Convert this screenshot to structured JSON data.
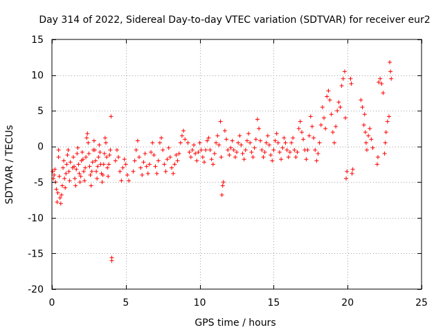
{
  "chart_data": {
    "type": "scatter",
    "title": "Day 314 of 2022, Sidereal Day-to-day VTEC variation (SDTVAR) for receiver eur2",
    "xlabel": "GPS time / hours",
    "ylabel": "SDTVAR / TECUs",
    "xlim": [
      0,
      25
    ],
    "ylim": [
      -20,
      15
    ],
    "grid": true,
    "marker": "+",
    "colors": {
      "series": "#ff0000",
      "grid": "#a0a0a0",
      "axis": "#000000"
    },
    "xticks": [
      0,
      5,
      10,
      15,
      20,
      25
    ],
    "xtick_labels": [
      "0",
      "5",
      "10",
      "15",
      "20",
      "25"
    ],
    "yticks": [
      -20,
      -15,
      -10,
      -5,
      0,
      5,
      10,
      15
    ],
    "ytick_labels": [
      "-20",
      "-15",
      "-10",
      "-5",
      "0",
      "5",
      "10",
      "15"
    ],
    "series": [
      {
        "name": "eur2",
        "points": [
          [
            0.05,
            -3.5
          ],
          [
            0.1,
            -4.5
          ],
          [
            0.15,
            -4.0
          ],
          [
            0.2,
            -3.2
          ],
          [
            0.25,
            -5.0
          ],
          [
            0.3,
            -6.0
          ],
          [
            0.35,
            -7.8
          ],
          [
            0.4,
            -6.5
          ],
          [
            0.45,
            -0.5
          ],
          [
            0.45,
            -1.5
          ],
          [
            0.5,
            -4.2
          ],
          [
            0.55,
            -7.2
          ],
          [
            0.6,
            -8.0
          ],
          [
            0.65,
            -6.8
          ],
          [
            0.7,
            -5.5
          ],
          [
            0.75,
            -3.0
          ],
          [
            0.8,
            -2.0
          ],
          [
            0.85,
            -4.5
          ],
          [
            0.9,
            -5.8
          ],
          [
            0.95,
            -3.8
          ],
          [
            1.0,
            -2.5
          ],
          [
            1.05,
            -1.2
          ],
          [
            1.1,
            -0.5
          ],
          [
            1.15,
            -3.5
          ],
          [
            1.2,
            -4.8
          ],
          [
            1.25,
            -2.2
          ],
          [
            1.4,
            -3.0
          ],
          [
            1.45,
            -1.5
          ],
          [
            1.5,
            -2.8
          ],
          [
            1.55,
            -4.5
          ],
          [
            1.6,
            -5.5
          ],
          [
            1.65,
            -3.2
          ],
          [
            1.7,
            -1.0
          ],
          [
            1.75,
            -0.2
          ],
          [
            1.8,
            -2.5
          ],
          [
            1.85,
            -3.8
          ],
          [
            1.9,
            -5.0
          ],
          [
            1.95,
            -4.2
          ],
          [
            2.0,
            -2.0
          ],
          [
            2.05,
            -0.8
          ],
          [
            2.1,
            -1.8
          ],
          [
            2.15,
            -3.5
          ],
          [
            2.2,
            -4.8
          ],
          [
            2.25,
            -3.0
          ],
          [
            2.3,
            -1.5
          ],
          [
            2.35,
            1.2
          ],
          [
            2.4,
            1.8
          ],
          [
            2.45,
            0.5
          ],
          [
            2.5,
            -1.0
          ],
          [
            2.55,
            -2.8
          ],
          [
            2.6,
            -4.0
          ],
          [
            2.65,
            -5.5
          ],
          [
            2.7,
            -3.5
          ],
          [
            2.75,
            -2.2
          ],
          [
            2.8,
            -0.5
          ],
          [
            2.85,
            0.8
          ],
          [
            2.9,
            -0.5
          ],
          [
            2.95,
            -2.0
          ],
          [
            3.0,
            -3.5
          ],
          [
            3.05,
            -4.5
          ],
          [
            3.1,
            -2.8
          ],
          [
            3.15,
            -1.5
          ],
          [
            3.2,
            0.2
          ],
          [
            3.25,
            -0.8
          ],
          [
            3.3,
            -2.5
          ],
          [
            3.35,
            -3.8
          ],
          [
            3.4,
            -5.0
          ],
          [
            3.45,
            -4.0
          ],
          [
            3.5,
            -2.5
          ],
          [
            3.55,
            -1.0
          ],
          [
            3.6,
            1.2
          ],
          [
            3.65,
            0.5
          ],
          [
            3.7,
            -1.5
          ],
          [
            3.75,
            -3.0
          ],
          [
            3.8,
            -4.2
          ],
          [
            3.85,
            -2.5
          ],
          [
            3.9,
            -1.2
          ],
          [
            3.95,
            -0.5
          ],
          [
            4.0,
            4.2
          ],
          [
            4.05,
            -16.0
          ],
          [
            4.05,
            -15.6
          ],
          [
            4.3,
            -2.0
          ],
          [
            4.4,
            -0.5
          ],
          [
            4.5,
            -1.5
          ],
          [
            4.6,
            -3.5
          ],
          [
            4.7,
            -4.8
          ],
          [
            4.8,
            -3.0
          ],
          [
            4.9,
            -1.8
          ],
          [
            5.0,
            -2.5
          ],
          [
            5.1,
            -4.0
          ],
          [
            5.2,
            -4.8
          ],
          [
            5.5,
            -3.5
          ],
          [
            5.6,
            -2.0
          ],
          [
            5.7,
            -0.5
          ],
          [
            5.8,
            0.8
          ],
          [
            5.9,
            -1.5
          ],
          [
            6.0,
            -3.0
          ],
          [
            6.1,
            -4.0
          ],
          [
            6.2,
            -2.2
          ],
          [
            6.3,
            -1.0
          ],
          [
            6.4,
            -2.8
          ],
          [
            6.5,
            -3.8
          ],
          [
            6.6,
            -2.5
          ],
          [
            6.7,
            -0.8
          ],
          [
            6.8,
            0.5
          ],
          [
            6.9,
            -1.2
          ],
          [
            7.0,
            -2.8
          ],
          [
            7.1,
            -3.8
          ],
          [
            7.2,
            -2.0
          ],
          [
            7.3,
            0.5
          ],
          [
            7.4,
            1.2
          ],
          [
            7.5,
            -0.5
          ],
          [
            7.6,
            -2.5
          ],
          [
            7.7,
            -3.5
          ],
          [
            7.8,
            -1.8
          ],
          [
            7.9,
            -0.2
          ],
          [
            8.0,
            -1.5
          ],
          [
            8.1,
            -3.0
          ],
          [
            8.2,
            -3.8
          ],
          [
            8.3,
            -2.5
          ],
          [
            8.4,
            -1.2
          ],
          [
            8.5,
            -2.0
          ],
          [
            8.6,
            -1.0
          ],
          [
            8.7,
            0.5
          ],
          [
            8.8,
            1.5
          ],
          [
            8.9,
            2.2
          ],
          [
            9.0,
            1.0
          ],
          [
            9.2,
            0.5
          ],
          [
            9.3,
            -0.8
          ],
          [
            9.4,
            -1.5
          ],
          [
            9.5,
            -0.5
          ],
          [
            9.6,
            0.2
          ],
          [
            9.7,
            -1.0
          ],
          [
            9.8,
            -2.0
          ],
          [
            9.9,
            -0.8
          ],
          [
            10.0,
            0.5
          ],
          [
            10.1,
            -0.5
          ],
          [
            10.2,
            -1.5
          ],
          [
            10.3,
            -2.2
          ],
          [
            10.4,
            -0.5
          ],
          [
            10.5,
            0.8
          ],
          [
            10.6,
            1.2
          ],
          [
            10.7,
            -0.5
          ],
          [
            10.8,
            -1.8
          ],
          [
            10.9,
            -2.5
          ],
          [
            11.0,
            -1.0
          ],
          [
            11.1,
            0.5
          ],
          [
            11.2,
            1.5
          ],
          [
            11.3,
            0.2
          ],
          [
            11.4,
            3.5
          ],
          [
            11.45,
            -1.5
          ],
          [
            11.5,
            -6.8
          ],
          [
            11.55,
            -5.5
          ],
          [
            11.6,
            -5.0
          ],
          [
            11.7,
            2.2
          ],
          [
            11.8,
            1.0
          ],
          [
            11.9,
            -0.5
          ],
          [
            12.0,
            -1.2
          ],
          [
            12.1,
            -0.2
          ],
          [
            12.2,
            0.8
          ],
          [
            12.3,
            -0.5
          ],
          [
            12.4,
            -1.5
          ],
          [
            12.5,
            -0.8
          ],
          [
            12.6,
            0.5
          ],
          [
            12.7,
            1.5
          ],
          [
            12.8,
            0.2
          ],
          [
            12.9,
            -1.0
          ],
          [
            13.0,
            -1.8
          ],
          [
            13.1,
            -0.5
          ],
          [
            13.2,
            0.8
          ],
          [
            13.3,
            1.8
          ],
          [
            13.4,
            0.5
          ],
          [
            13.5,
            -0.8
          ],
          [
            13.6,
            -1.5
          ],
          [
            13.7,
            -0.2
          ],
          [
            13.8,
            1.0
          ],
          [
            13.9,
            3.8
          ],
          [
            14.0,
            2.5
          ],
          [
            14.1,
            0.8
          ],
          [
            14.2,
            -0.5
          ],
          [
            14.3,
            -1.5
          ],
          [
            14.4,
            -0.8
          ],
          [
            14.5,
            0.5
          ],
          [
            14.6,
            1.5
          ],
          [
            14.7,
            0.2
          ],
          [
            14.8,
            -1.2
          ],
          [
            14.9,
            -2.0
          ],
          [
            15.0,
            -0.5
          ],
          [
            15.1,
            0.8
          ],
          [
            15.2,
            1.8
          ],
          [
            15.3,
            0.5
          ],
          [
            15.4,
            -0.8
          ],
          [
            15.5,
            -1.8
          ],
          [
            15.6,
            -0.2
          ],
          [
            15.7,
            1.2
          ],
          [
            15.8,
            0.5
          ],
          [
            15.9,
            -0.5
          ],
          [
            16.0,
            -1.5
          ],
          [
            16.1,
            -0.8
          ],
          [
            16.2,
            0.5
          ],
          [
            16.3,
            1.2
          ],
          [
            16.4,
            -0.5
          ],
          [
            16.5,
            -1.5
          ],
          [
            16.6,
            -0.8
          ],
          [
            16.7,
            2.5
          ],
          [
            16.8,
            3.5
          ],
          [
            16.9,
            2.0
          ],
          [
            17.0,
            1.0
          ],
          [
            17.1,
            -0.5
          ],
          [
            17.2,
            -1.8
          ],
          [
            17.3,
            -0.5
          ],
          [
            17.4,
            1.5
          ],
          [
            17.5,
            4.2
          ],
          [
            17.6,
            2.8
          ],
          [
            17.7,
            1.2
          ],
          [
            17.8,
            -0.5
          ],
          [
            17.9,
            -2.0
          ],
          [
            18.0,
            -1.0
          ],
          [
            18.1,
            0.5
          ],
          [
            18.2,
            3.0
          ],
          [
            18.3,
            5.5
          ],
          [
            18.4,
            4.0
          ],
          [
            18.5,
            2.5
          ],
          [
            18.6,
            7.0
          ],
          [
            18.7,
            7.8
          ],
          [
            18.8,
            6.5
          ],
          [
            18.9,
            4.5
          ],
          [
            19.0,
            2.0
          ],
          [
            19.1,
            0.5
          ],
          [
            19.2,
            2.8
          ],
          [
            19.3,
            5.0
          ],
          [
            19.4,
            6.2
          ],
          [
            19.5,
            5.5
          ],
          [
            19.6,
            8.5
          ],
          [
            19.7,
            9.5
          ],
          [
            19.8,
            10.5
          ],
          [
            19.85,
            4.0
          ],
          [
            19.9,
            -4.5
          ],
          [
            19.95,
            -3.5
          ],
          [
            20.2,
            9.5
          ],
          [
            20.25,
            8.8
          ],
          [
            20.3,
            -3.8
          ],
          [
            20.35,
            -3.2
          ],
          [
            20.9,
            6.5
          ],
          [
            21.0,
            5.5
          ],
          [
            21.1,
            3.0
          ],
          [
            21.15,
            4.5
          ],
          [
            21.2,
            2.0
          ],
          [
            21.25,
            0.5
          ],
          [
            21.3,
            -0.5
          ],
          [
            21.4,
            1.5
          ],
          [
            21.5,
            2.5
          ],
          [
            21.6,
            1.0
          ],
          [
            21.7,
            -0.2
          ],
          [
            22.0,
            -2.5
          ],
          [
            22.05,
            -1.5
          ],
          [
            22.1,
            9.0
          ],
          [
            22.2,
            9.5
          ],
          [
            22.3,
            8.8
          ],
          [
            22.4,
            7.5
          ],
          [
            22.5,
            -1.0
          ],
          [
            22.55,
            0.5
          ],
          [
            22.6,
            2.0
          ],
          [
            22.7,
            3.5
          ],
          [
            22.8,
            4.2
          ],
          [
            22.85,
            11.8
          ],
          [
            22.9,
            10.5
          ],
          [
            22.95,
            9.5
          ]
        ]
      }
    ]
  }
}
